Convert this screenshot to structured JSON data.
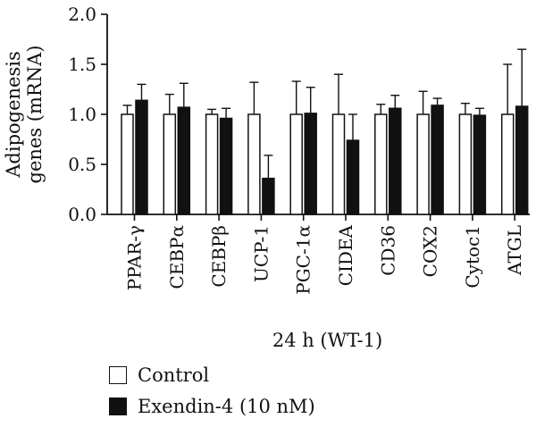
{
  "chart_data": {
    "type": "bar",
    "ylabel": "Adipogenesis genes (mRNA)",
    "ylabel_lines": [
      "Adipogenesis",
      "genes (mRNA)"
    ],
    "xlabel": "24 h (WT-1)",
    "ylim": [
      0,
      2.0
    ],
    "yticks": [
      "0.0",
      "0.5",
      "1.0",
      "1.5",
      "2.0"
    ],
    "categories": [
      "PPAR-γ",
      "CEBPα",
      "CEBPβ",
      "UCP-1",
      "PGC-1α",
      "CIDEA",
      "CD36",
      "COX2",
      "Cytoc1",
      "ATGL"
    ],
    "series": [
      {
        "name": "Control",
        "color": "#ffffff",
        "values": [
          1.0,
          1.0,
          1.0,
          1.0,
          1.0,
          1.0,
          1.0,
          1.0,
          1.0,
          1.0
        ],
        "errors": [
          0.09,
          0.2,
          0.05,
          0.32,
          0.33,
          0.4,
          0.1,
          0.23,
          0.11,
          0.5
        ]
      },
      {
        "name": "Exendin-4 (10 nM)",
        "color": "#111111",
        "values": [
          1.14,
          1.07,
          0.96,
          0.36,
          1.01,
          0.74,
          1.06,
          1.09,
          0.99,
          1.08
        ],
        "errors": [
          0.16,
          0.24,
          0.1,
          0.23,
          0.26,
          0.26,
          0.13,
          0.07,
          0.07,
          0.57
        ]
      }
    ],
    "grid": false,
    "legend_position": "bottom-left"
  }
}
